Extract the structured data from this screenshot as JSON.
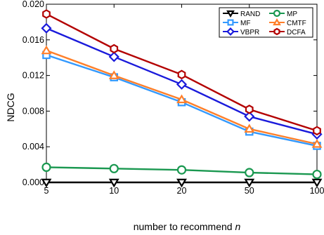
{
  "chart_data": {
    "type": "line",
    "title": "",
    "xlabel": "number to recommend",
    "xlabel_var": "n",
    "ylabel": "NDCG",
    "categories": [
      "5",
      "10",
      "20",
      "50",
      "100"
    ],
    "ylim": [
      0,
      0.02
    ],
    "yticks": [
      "0.000",
      "0.004",
      "0.008",
      "0.012",
      "0.016",
      "0.020"
    ],
    "grid": false,
    "legend_position": "top-right",
    "series": [
      {
        "name": "RAND",
        "color": "#000000",
        "marker": "triangle-down",
        "values": [
          0.0,
          0.0,
          0.0,
          0.0,
          0.0
        ]
      },
      {
        "name": "MP",
        "color": "#1a9850",
        "marker": "circle",
        "values": [
          0.0017,
          0.00155,
          0.0014,
          0.0011,
          0.0009
        ]
      },
      {
        "name": "MF",
        "color": "#3399ff",
        "marker": "square",
        "values": [
          0.0143,
          0.0118,
          0.009,
          0.0057,
          0.0041
        ]
      },
      {
        "name": "CMTF",
        "color": "#ff7f2a",
        "marker": "triangle-up",
        "values": [
          0.0148,
          0.012,
          0.0093,
          0.006,
          0.0043
        ]
      },
      {
        "name": "VBPR",
        "color": "#1a1adb",
        "marker": "diamond",
        "values": [
          0.0173,
          0.0141,
          0.011,
          0.0074,
          0.0054
        ]
      },
      {
        "name": "DCFA",
        "color": "#b30000",
        "marker": "hexagon",
        "values": [
          0.0189,
          0.015,
          0.0121,
          0.0082,
          0.0058
        ]
      }
    ]
  }
}
